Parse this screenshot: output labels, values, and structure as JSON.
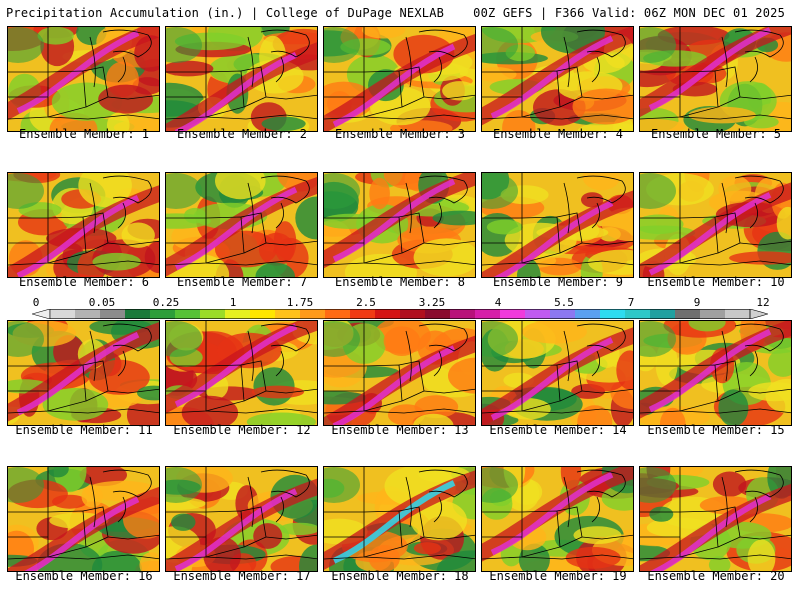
{
  "header": {
    "title_left": "Precipitation Accumulation (in.) | College of DuPage NEXLAB",
    "title_right": "00Z GEFS | F366 Valid: 06Z MON DEC 01 2025"
  },
  "panels": [
    {
      "label": "Ensemble Member: 1"
    },
    {
      "label": "Ensemble Member: 2"
    },
    {
      "label": "Ensemble Member: 3"
    },
    {
      "label": "Ensemble Member: 4"
    },
    {
      "label": "Ensemble Member: 5"
    },
    {
      "label": "Ensemble Member: 6"
    },
    {
      "label": "Ensemble Member: 7"
    },
    {
      "label": "Ensemble Member: 8"
    },
    {
      "label": "Ensemble Member: 9"
    },
    {
      "label": "Ensemble Member: 10"
    },
    {
      "label": "Ensemble Member: 11"
    },
    {
      "label": "Ensemble Member: 12"
    },
    {
      "label": "Ensemble Member: 13"
    },
    {
      "label": "Ensemble Member: 14"
    },
    {
      "label": "Ensemble Member: 15"
    },
    {
      "label": "Ensemble Member: 16"
    },
    {
      "label": "Ensemble Member: 17"
    },
    {
      "label": "Ensemble Member: 18"
    },
    {
      "label": "Ensemble Member: 19"
    },
    {
      "label": "Ensemble Member: 20"
    }
  ],
  "colorbar": {
    "labels": [
      "0",
      "0.05",
      "0.25",
      "1",
      "1.75",
      "2.5",
      "3.25",
      "4",
      "5.5",
      "7",
      "9",
      "12"
    ],
    "colors": [
      "#d9d9d9",
      "#b3b3b3",
      "#8c8c8c",
      "#1a7a3a",
      "#2e9e3a",
      "#56c236",
      "#9bdc28",
      "#e6f020",
      "#ffe600",
      "#ffc21a",
      "#ff9a1a",
      "#ff6a14",
      "#f03a14",
      "#d41414",
      "#b00f1e",
      "#8a0b2e",
      "#b8127a",
      "#d61ea8",
      "#f03adc",
      "#c05af0",
      "#8c78f0",
      "#5aa0f0",
      "#2edcf0",
      "#2ec8c8",
      "#20a0a0",
      "#707070",
      "#a0a0a0",
      "#c8c8c8"
    ]
  }
}
